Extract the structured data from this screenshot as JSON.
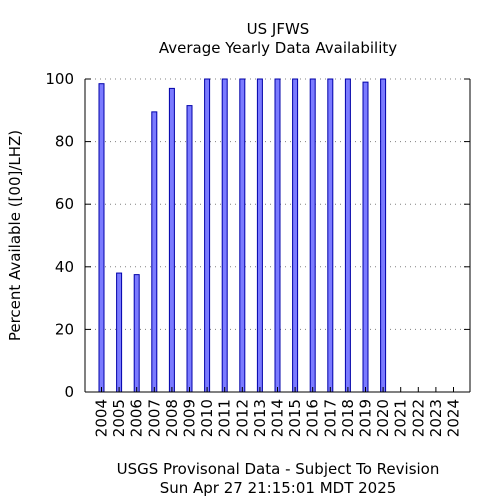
{
  "chart_data": {
    "type": "bar",
    "title_lines": [
      "US JFWS",
      "Average Yearly Data Availability"
    ],
    "ylabel": "Percent Available ([00]/LHZ)",
    "xlabel": "",
    "categories": [
      "2004",
      "2005",
      "2006",
      "2007",
      "2008",
      "2009",
      "2010",
      "2011",
      "2012",
      "2013",
      "2014",
      "2015",
      "2016",
      "2017",
      "2018",
      "2019",
      "2020",
      "2021",
      "2022",
      "2023",
      "2024"
    ],
    "values": [
      98.5,
      38,
      37.5,
      89.5,
      97,
      91.5,
      100,
      100,
      100,
      100,
      100,
      100,
      100,
      100,
      100,
      99,
      100,
      0,
      0,
      0,
      0
    ],
    "ylim": [
      0,
      100
    ],
    "yticks": [
      0,
      20,
      40,
      60,
      80,
      100
    ],
    "grid": "horizontal dotted",
    "bar_color": "#7b7bff",
    "bar_edge_color": "#0000aa",
    "footer_lines": [
      "USGS Provisonal Data - Subject To Revision",
      "Sun Apr 27 21:15:01 MDT 2025"
    ]
  }
}
